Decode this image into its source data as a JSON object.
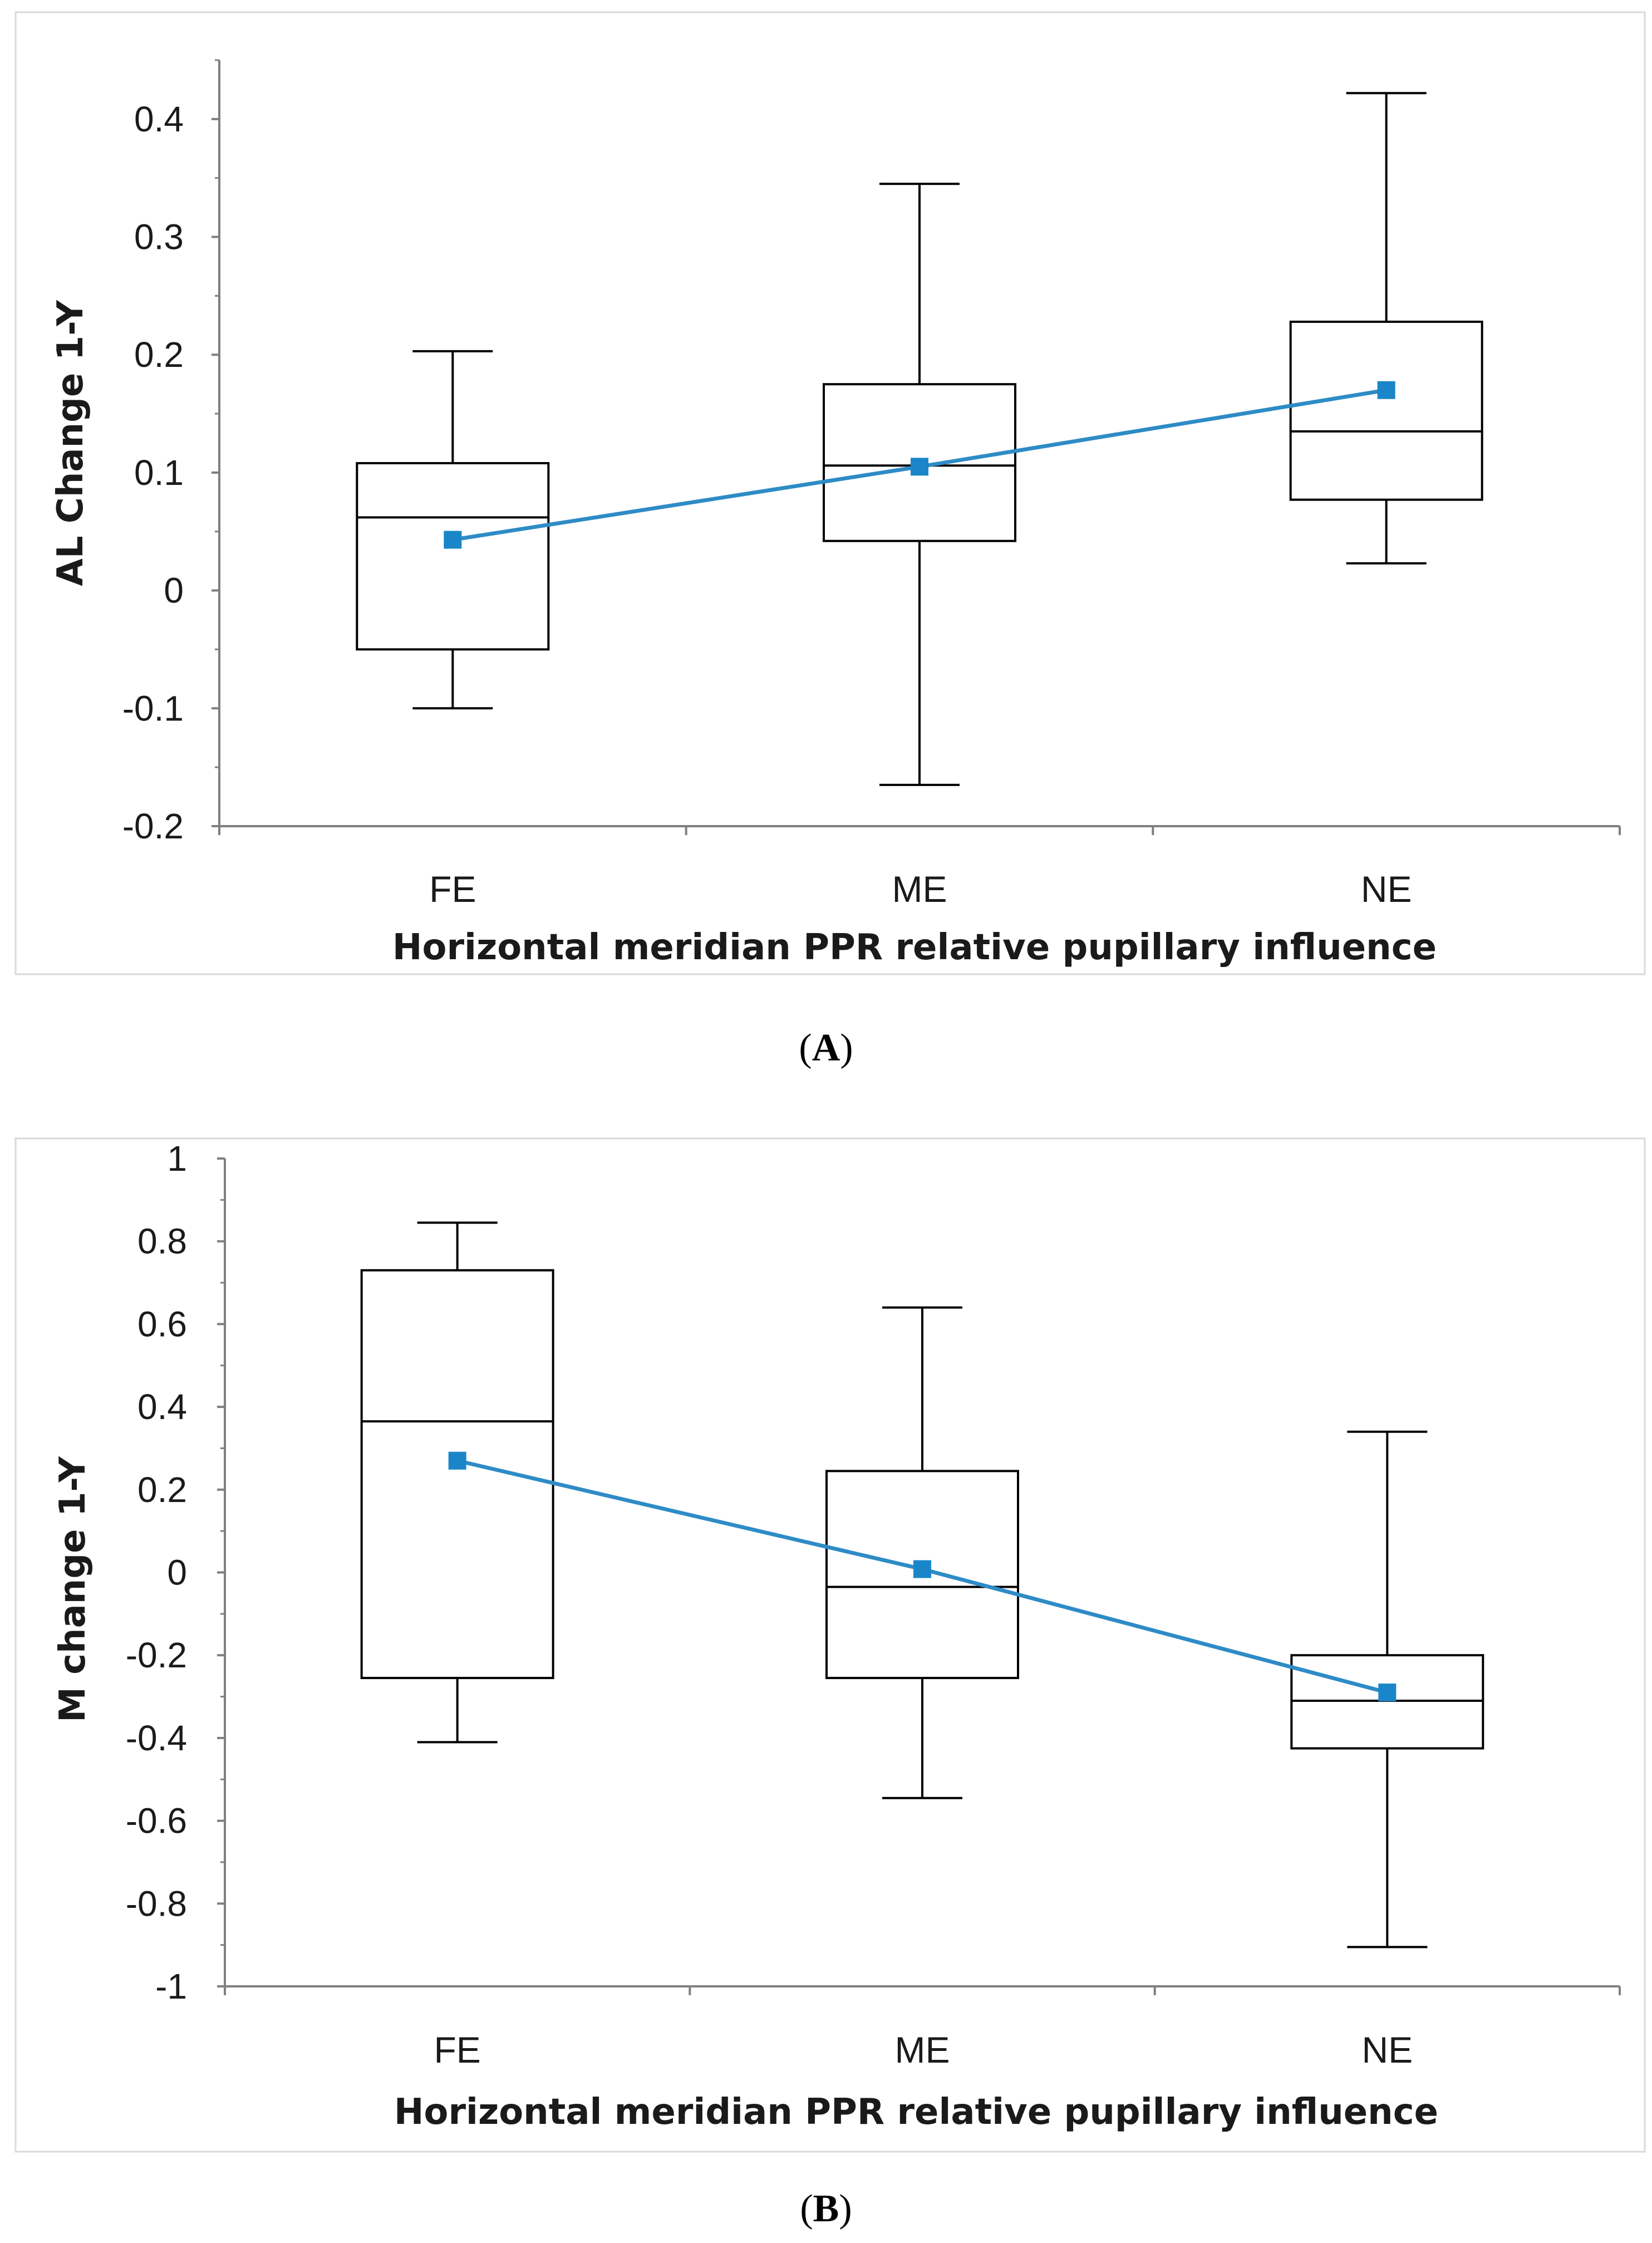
{
  "colors": {
    "mean_line": "#2e8bc6",
    "mean_marker": "#1a86c9",
    "box": "#000000",
    "axis": "#7f7f7f"
  },
  "chart_data": [
    {
      "type": "box",
      "panel_label": "A",
      "xlabel": "Horizontal meridian PPR relative pupillary influence",
      "ylabel": "AL Change 1-Y",
      "categories": [
        "FE",
        "ME",
        "NE"
      ],
      "ylim": [
        -0.2,
        0.45
      ],
      "yticks": [
        -0.2,
        -0.1,
        0,
        0.1,
        0.2,
        0.3,
        0.4
      ],
      "ytick_labels": [
        "-0.2",
        "-0.1",
        "0",
        "0.1",
        "0.2",
        "0.3",
        "0.4"
      ],
      "grid": false,
      "boxes": [
        {
          "category": "FE",
          "min": -0.1,
          "q1": -0.05,
          "median": 0.062,
          "q3": 0.108,
          "max": 0.203,
          "mean": 0.043
        },
        {
          "category": "ME",
          "min": -0.165,
          "q1": 0.042,
          "median": 0.106,
          "q3": 0.175,
          "max": 0.345,
          "mean": 0.105
        },
        {
          "category": "NE",
          "min": 0.023,
          "q1": 0.077,
          "median": 0.135,
          "q3": 0.228,
          "max": 0.422,
          "mean": 0.17
        }
      ]
    },
    {
      "type": "box",
      "panel_label": "B",
      "xlabel": "Horizontal meridian PPR relative pupillary influence",
      "ylabel": "M change 1-Y",
      "categories": [
        "FE",
        "ME",
        "NE"
      ],
      "ylim": [
        -1,
        1
      ],
      "yticks": [
        -1,
        -0.8,
        -0.6,
        -0.4,
        -0.2,
        0,
        0.2,
        0.4,
        0.6,
        0.8,
        1
      ],
      "ytick_labels": [
        "-1",
        "-0.8",
        "-0.6",
        "-0.4",
        "-0.2",
        "0",
        "0.2",
        "0.4",
        "0.6",
        "0.8",
        "1"
      ],
      "grid": false,
      "boxes": [
        {
          "category": "FE",
          "min": -0.41,
          "q1": -0.255,
          "median": 0.365,
          "q3": 0.73,
          "max": 0.845,
          "mean": 0.27
        },
        {
          "category": "ME",
          "min": -0.545,
          "q1": -0.255,
          "median": -0.035,
          "q3": 0.245,
          "max": 0.64,
          "mean": 0.008
        },
        {
          "category": "NE",
          "min": -0.905,
          "q1": -0.425,
          "median": -0.31,
          "q3": -0.2,
          "max": 0.34,
          "mean": -0.29
        }
      ]
    }
  ]
}
